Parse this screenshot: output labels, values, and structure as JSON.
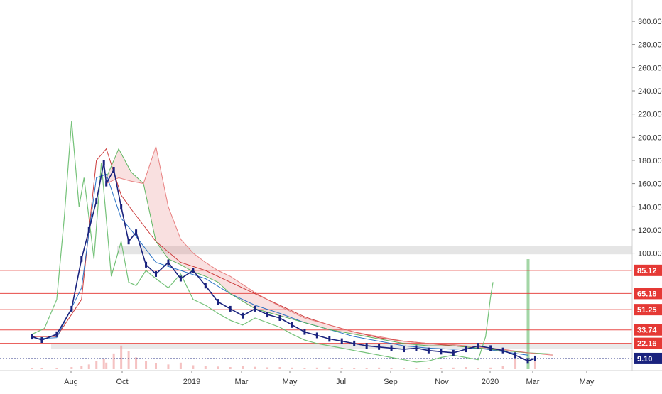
{
  "chart_data": {
    "type": "line",
    "title": "",
    "xlabel": "",
    "ylabel": "",
    "ylim": [
      0,
      310
    ],
    "x_ticks": [
      "Aug",
      "Oct",
      "2019",
      "Mar",
      "May",
      "Jul",
      "Sep",
      "Nov",
      "2020",
      "Mar",
      "May"
    ],
    "y_ticks": [
      300,
      280,
      260,
      240,
      220,
      200,
      180,
      160,
      140,
      120,
      100
    ],
    "price_labels": [
      {
        "label": "85.12",
        "value": 85.12,
        "color": "#e53935"
      },
      {
        "label": "65.18",
        "value": 65.18,
        "color": "#e53935"
      },
      {
        "label": "51.25",
        "value": 51.25,
        "color": "#e53935"
      },
      {
        "label": "33.74",
        "value": 33.74,
        "color": "#e53935"
      },
      {
        "label": "22.16",
        "value": 22.16,
        "color": "#e53935"
      },
      {
        "label": "9.10",
        "value": 9.1,
        "color": "#1a237e"
      }
    ],
    "price_series": {
      "x": [
        0.0,
        0.4,
        1.0,
        1.6,
        2.0,
        2.3,
        2.6,
        2.9,
        3.0,
        3.3,
        3.6,
        3.9,
        4.2,
        4.6,
        5.0,
        5.5,
        6.0,
        6.5,
        7.0,
        7.5,
        8.0,
        8.5,
        9.0,
        9.5,
        10.0,
        10.5,
        11.0,
        11.5,
        12.0,
        12.5,
        13.0,
        13.5,
        14.0,
        14.5,
        15.0,
        15.5,
        16.0,
        16.5,
        17.0,
        17.5,
        18.0,
        18.5,
        19.0,
        19.5,
        20.0,
        20.3
      ],
      "y": [
        28,
        25,
        30,
        52,
        95,
        120,
        145,
        178,
        160,
        172,
        140,
        110,
        118,
        90,
        82,
        92,
        78,
        85,
        72,
        58,
        52,
        46,
        52,
        47,
        44,
        38,
        32,
        29,
        26,
        24,
        22,
        20,
        19,
        18,
        17,
        18,
        16,
        15,
        14,
        17,
        20,
        18,
        16,
        12,
        7,
        9.1
      ]
    },
    "series": [
      {
        "name": "",
        "kind": "lagging-span",
        "color": "#66bb6a",
        "x": [
          0.0,
          0.5,
          1.0,
          1.3,
          1.6,
          1.9,
          2.1,
          2.5,
          2.8,
          3.2,
          3.6,
          3.9,
          4.2,
          4.6,
          5.0,
          5.5,
          6.0,
          6.5,
          7.0,
          7.5,
          8.0,
          8.5,
          9.0,
          9.5,
          10.0,
          10.5,
          11.0,
          11.5,
          12.0,
          12.5,
          13.0,
          13.5,
          14.0,
          14.5,
          15.0,
          15.5,
          16.0,
          16.5,
          17.0,
          17.5,
          18.0,
          18.3,
          18.5,
          18.6
        ],
        "y": [
          30,
          35,
          60,
          130,
          214,
          140,
          165,
          95,
          178,
          80,
          110,
          75,
          72,
          85,
          78,
          70,
          82,
          60,
          55,
          48,
          42,
          38,
          44,
          40,
          36,
          30,
          25,
          22,
          20,
          18,
          16,
          14,
          12,
          10,
          8,
          6,
          7,
          10,
          12,
          10,
          8,
          28,
          62,
          75
        ]
      },
      {
        "name": "",
        "kind": "base-line",
        "color": "#c62828",
        "x": [
          0.0,
          1.0,
          2.0,
          2.6,
          3.0,
          3.6,
          4.0,
          5.0,
          6.0,
          7.0,
          8.0,
          9.0,
          10.0,
          11.0,
          12.0,
          13.0,
          14.0,
          15.0,
          16.0,
          17.0,
          18.0,
          19.0,
          20.0
        ],
        "y": [
          28,
          28,
          60,
          180,
          190,
          150,
          138,
          110,
          92,
          85,
          75,
          65,
          55,
          45,
          38,
          32,
          27,
          24,
          22,
          20,
          18,
          16,
          14
        ]
      },
      {
        "name": "",
        "kind": "conversion-line",
        "color": "#1565c0",
        "x": [
          0.0,
          1.0,
          2.0,
          2.6,
          3.0,
          3.6,
          4.0,
          5.0,
          6.0,
          7.0,
          8.0,
          9.0,
          10.0,
          11.0,
          12.0,
          13.0,
          14.0,
          15.0,
          16.0,
          17.0,
          18.0,
          19.0,
          20.0
        ],
        "y": [
          26,
          27,
          70,
          165,
          168,
          130,
          120,
          92,
          85,
          78,
          65,
          55,
          48,
          40,
          34,
          28,
          24,
          20,
          18,
          17,
          18,
          15,
          12
        ]
      },
      {
        "name": "",
        "kind": "cloud-span-a",
        "color": "#4caf50",
        "x": [
          3.0,
          3.5,
          4.0,
          4.5,
          5.0,
          5.5,
          6.0,
          6.5,
          7.0,
          7.5,
          8.0,
          9.0,
          10.0,
          11.0,
          12.0,
          13.0,
          14.0,
          15.0,
          16.0,
          17.0,
          18.0,
          19.0,
          20.0,
          21.0
        ],
        "y": [
          165,
          190,
          170,
          160,
          110,
          95,
          90,
          84,
          80,
          75,
          65,
          52,
          46,
          40,
          34,
          30,
          26,
          22,
          20,
          20,
          18,
          16,
          14,
          13
        ]
      },
      {
        "name": "",
        "kind": "cloud-span-b",
        "color": "#e57373",
        "x": [
          3.0,
          3.5,
          4.0,
          4.5,
          5.0,
          5.5,
          6.0,
          6.5,
          7.0,
          7.5,
          8.0,
          9.0,
          10.0,
          11.0,
          12.0,
          13.0,
          14.0,
          15.0,
          16.0,
          17.0,
          18.0,
          19.0,
          20.0,
          21.0
        ],
        "y": [
          160,
          165,
          162,
          160,
          192,
          140,
          112,
          100,
          92,
          85,
          80,
          66,
          54,
          44,
          38,
          32,
          28,
          24,
          22,
          21,
          19,
          17,
          14,
          12
        ]
      }
    ],
    "volume": [
      4,
      3,
      5,
      8,
      12,
      18,
      30,
      40,
      25,
      60,
      90,
      70,
      45,
      30,
      22,
      18,
      25,
      15,
      12,
      10,
      8,
      12,
      9,
      7,
      8,
      6,
      5,
      6,
      7,
      5,
      4,
      5,
      6,
      4,
      3,
      4,
      5,
      4,
      6,
      8,
      5,
      6,
      12,
      40,
      420,
      30
    ],
    "grid": true,
    "legend": "none",
    "colors": {
      "price": "#1a237e",
      "level_line": "#e53935",
      "volume": "#ef9a9a",
      "volume_spike": "#66bb6a",
      "gray_band": "#cfcfcf"
    }
  }
}
